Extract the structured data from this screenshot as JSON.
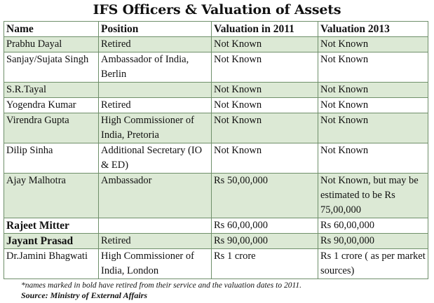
{
  "title": "IFS Officers & Valuation of Assets",
  "table": {
    "headers": [
      "Name",
      "Position",
      "Valuation in 2011",
      "Valuation 2013"
    ],
    "rows": [
      {
        "name": "Prabhu Dayal",
        "position": "Retired",
        "val2011": "Not Known",
        "val2013": "Not Known",
        "bold": false,
        "shaded": true
      },
      {
        "name": "Sanjay/Sujata Singh",
        "position": "Ambassador of India, Berlin",
        "val2011": "Not Known",
        "val2013": "Not Known",
        "bold": false,
        "shaded": false
      },
      {
        "name": "S.R.Tayal",
        "position": "",
        "val2011": "Not Known",
        "val2013": "Not Known",
        "bold": false,
        "shaded": true
      },
      {
        "name": "Yogendra Kumar",
        "position": "Retired",
        "val2011": "Not Known",
        "val2013": "Not Known",
        "bold": false,
        "shaded": false
      },
      {
        "name": "Virendra Gupta",
        "position": "High Commissioner of India, Pretoria",
        "val2011": "Not Known",
        "val2013": "Not Known",
        "bold": false,
        "shaded": true
      },
      {
        "name": "Dilip Sinha",
        "position": "Additional Secretary (IO & ED)",
        "val2011": "Not Known",
        "val2013": "Not Known",
        "bold": false,
        "shaded": false
      },
      {
        "name": "Ajay Malhotra",
        "position": "Ambassador",
        "val2011": "Rs 50,00,000",
        "val2013": "Not Known, but may be estimated to be Rs 75,00,000",
        "bold": false,
        "shaded": true
      },
      {
        "name": "Rajeet Mitter",
        "position": "",
        "val2011": "Rs 60,00,000",
        "val2013": "Rs 60,00,000",
        "bold": true,
        "shaded": false
      },
      {
        "name": "Jayant Prasad",
        "position": "Retired",
        "val2011": "Rs 90,00,000",
        "val2013": "Rs 90,00,000",
        "bold": true,
        "shaded": true
      },
      {
        "name": "Dr.Jamini Bhagwati",
        "position": "High Commissioner of India, London",
        "val2011": "Rs 1 crore",
        "val2013": "Rs 1 crore ( as per market sources)",
        "bold": false,
        "shaded": false
      }
    ]
  },
  "footnote": "*names marked in bold have retired from their service and the valuation dates to 2011.",
  "source": "Source: Ministry of External Affairs",
  "colors": {
    "shade": "#dce9d5",
    "border": "#6f8f6a"
  }
}
